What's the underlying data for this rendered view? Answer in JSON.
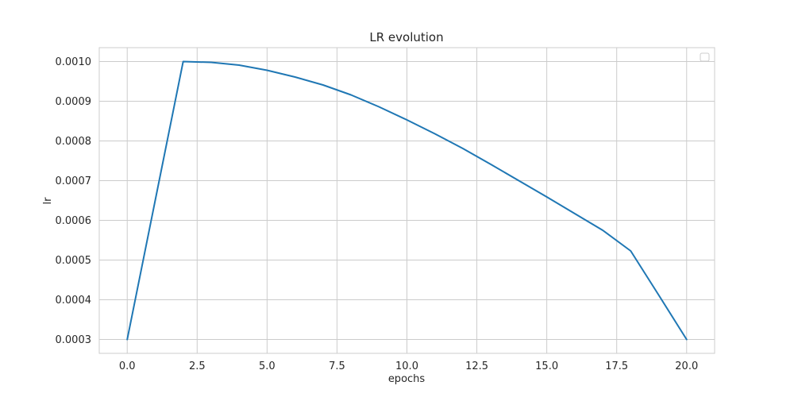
{
  "chart_data": {
    "type": "line",
    "title": "LR evolution",
    "xlabel": "epochs",
    "ylabel": "lr",
    "xlim": [
      -1.0,
      21.0
    ],
    "ylim": [
      0.000265,
      0.001035
    ],
    "xticks": [
      0.0,
      2.5,
      5.0,
      7.5,
      10.0,
      12.5,
      15.0,
      17.5,
      20.0
    ],
    "xtick_labels": [
      "0.0",
      "2.5",
      "5.0",
      "7.5",
      "10.0",
      "12.5",
      "15.0",
      "17.5",
      "20.0"
    ],
    "yticks": [
      0.0003,
      0.0004,
      0.0005,
      0.0006,
      0.0007,
      0.0008,
      0.0009,
      0.001
    ],
    "ytick_labels": [
      "0.0003",
      "0.0004",
      "0.0005",
      "0.0006",
      "0.0007",
      "0.0008",
      "0.0009",
      "0.0010"
    ],
    "grid": true,
    "legend": {
      "position": "top-right",
      "entries": []
    },
    "series": [
      {
        "color": "#1f77b4",
        "x": [
          0,
          1,
          2,
          3,
          4,
          5,
          6,
          7,
          8,
          9,
          10,
          11,
          12,
          13,
          14,
          15,
          16,
          17,
          18,
          19,
          20
        ],
        "y": [
          0.0003,
          0.00065,
          0.001,
          0.000998,
          0.000991,
          0.000978,
          0.000961,
          0.000941,
          0.000916,
          0.000886,
          0.000853,
          0.000818,
          0.000781,
          0.000741,
          0.0007,
          0.000659,
          0.000617,
          0.000575,
          0.000523,
          0.000412,
          0.0003
        ]
      }
    ]
  }
}
